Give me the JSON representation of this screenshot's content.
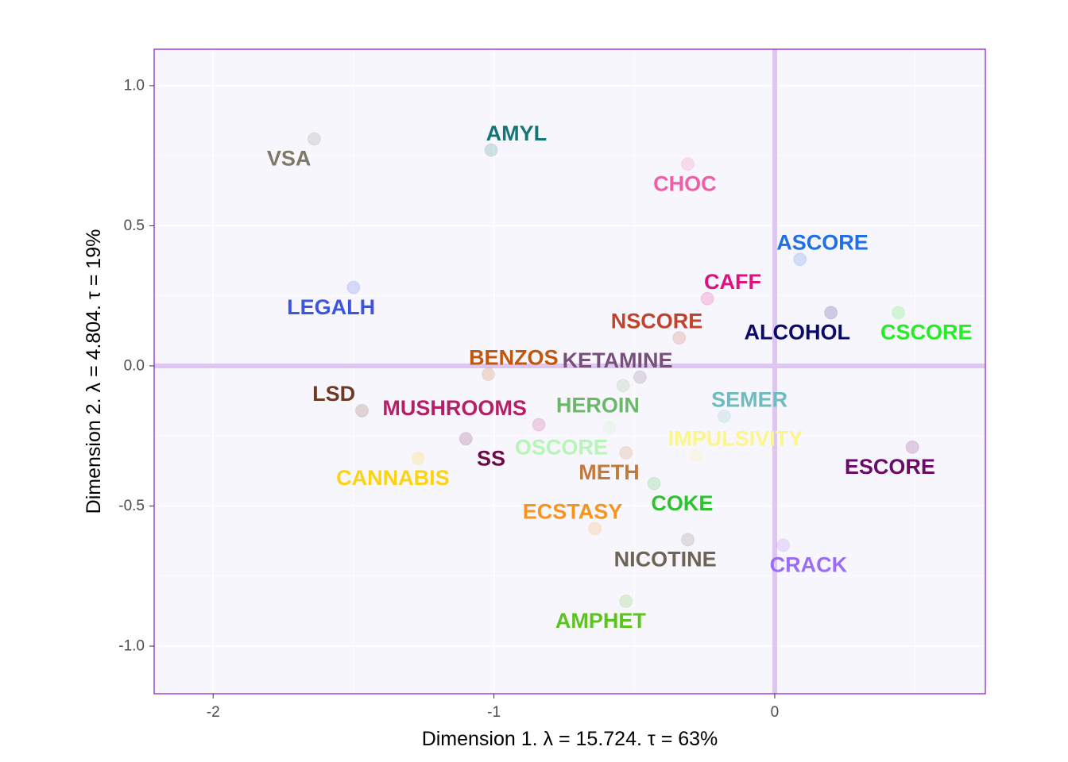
{
  "chart_data": {
    "type": "scatter",
    "title": "",
    "xlabel": "Dimension 1.   λ = 15.724.  τ = 63%",
    "ylabel": "Dimension 2.   λ = 4.804.  τ = 19%",
    "xlim": [
      -2.21,
      0.75
    ],
    "ylim": [
      -1.17,
      1.13
    ],
    "x_ticks": [
      -2,
      -1,
      0
    ],
    "x_tick_labels": [
      "-2",
      "-1",
      "0"
    ],
    "y_ticks": [
      1.0,
      0.5,
      0.0,
      -0.5,
      -1.0
    ],
    "y_tick_labels": [
      "1.0",
      "0.5",
      "0.0",
      "-0.5",
      "-1.0"
    ],
    "grid": true,
    "reference_lines": {
      "x": 0,
      "y": 0
    },
    "points": [
      {
        "label": "VSA",
        "x": -1.64,
        "y": 0.81,
        "color": "#7a7a66",
        "label_dx": -0.09,
        "label_dy": -0.07
      },
      {
        "label": "AMYL",
        "x": -1.01,
        "y": 0.77,
        "color": "#137574",
        "label_dx": 0.09,
        "label_dy": 0.06
      },
      {
        "label": "CHOC",
        "x": -0.31,
        "y": 0.72,
        "color": "#ef5fa7",
        "label_dx": -0.01,
        "label_dy": -0.07
      },
      {
        "label": "ASCORE",
        "x": 0.09,
        "y": 0.38,
        "color": "#1f6fe5",
        "label_dx": 0.08,
        "label_dy": 0.06
      },
      {
        "label": "CAFF",
        "x": -0.24,
        "y": 0.24,
        "color": "#e0117f",
        "label_dx": 0.09,
        "label_dy": 0.06
      },
      {
        "label": "LEGALH",
        "x": -1.5,
        "y": 0.28,
        "color": "#3b55e0",
        "label_dx": -0.08,
        "label_dy": -0.07
      },
      {
        "label": "NSCORE",
        "x": -0.34,
        "y": 0.1,
        "color": "#c2432b",
        "label_dx": -0.08,
        "label_dy": 0.06
      },
      {
        "label": "ALCOHOL",
        "x": 0.2,
        "y": 0.19,
        "color": "#0a0a6b",
        "label_dx": -0.12,
        "label_dy": -0.07
      },
      {
        "label": "CSCORE",
        "x": 0.44,
        "y": 0.19,
        "color": "#22ee22",
        "label_dx": 0.1,
        "label_dy": -0.07
      },
      {
        "label": "BENZOS",
        "x": -1.02,
        "y": -0.03,
        "color": "#c2570c",
        "label_dx": 0.09,
        "label_dy": 0.06
      },
      {
        "label": "KETAMINE",
        "x": -0.48,
        "y": -0.04,
        "color": "#76507a",
        "label_dx": -0.08,
        "label_dy": 0.06
      },
      {
        "label": "LSD",
        "x": -1.47,
        "y": -0.16,
        "color": "#6e3a22",
        "label_dx": -0.1,
        "label_dy": 0.06
      },
      {
        "label": "HEROIN",
        "x": -0.54,
        "y": -0.07,
        "color": "#6bb86b",
        "label_dx": -0.09,
        "label_dy": -0.07
      },
      {
        "label": "SEMER",
        "x": -0.18,
        "y": -0.18,
        "color": "#6ebcbf",
        "label_dx": 0.09,
        "label_dy": 0.06
      },
      {
        "label": "MUSHROOMS",
        "x": -0.84,
        "y": -0.21,
        "color": "#b51f66",
        "label_dx": -0.3,
        "label_dy": 0.06
      },
      {
        "label": "OSCORE",
        "x": -0.59,
        "y": -0.22,
        "color": "#b6f5b6",
        "label_dx": -0.17,
        "label_dy": -0.07
      },
      {
        "label": "IMPULSIVITY",
        "x": -0.28,
        "y": -0.32,
        "color": "#fbf58a",
        "label_dx": 0.14,
        "label_dy": 0.06
      },
      {
        "label": "ESCORE",
        "x": 0.49,
        "y": -0.29,
        "color": "#6b0a6b",
        "label_dx": -0.08,
        "label_dy": -0.07
      },
      {
        "label": "SS",
        "x": -1.1,
        "y": -0.26,
        "color": "#6b0a47",
        "label_dx": 0.09,
        "label_dy": -0.07
      },
      {
        "label": "CANNABIS",
        "x": -1.27,
        "y": -0.33,
        "color": "#fbd312",
        "label_dx": -0.09,
        "label_dy": -0.07
      },
      {
        "label": "METH",
        "x": -0.53,
        "y": -0.31,
        "color": "#c27a3a",
        "label_dx": -0.06,
        "label_dy": -0.07
      },
      {
        "label": "COKE",
        "x": -0.43,
        "y": -0.42,
        "color": "#2cc42c",
        "label_dx": 0.1,
        "label_dy": -0.07
      },
      {
        "label": "ECSTASY",
        "x": -0.64,
        "y": -0.58,
        "color": "#f7941d",
        "label_dx": -0.08,
        "label_dy": 0.06
      },
      {
        "label": "NICOTINE",
        "x": -0.31,
        "y": -0.62,
        "color": "#6e6455",
        "label_dx": -0.08,
        "label_dy": -0.07
      },
      {
        "label": "CRACK",
        "x": 0.03,
        "y": -0.64,
        "color": "#9b6cf7",
        "label_dx": 0.09,
        "label_dy": -0.07
      },
      {
        "label": "AMPHET",
        "x": -0.53,
        "y": -0.84,
        "color": "#5cc41c",
        "label_dx": -0.09,
        "label_dy": -0.07
      }
    ]
  }
}
